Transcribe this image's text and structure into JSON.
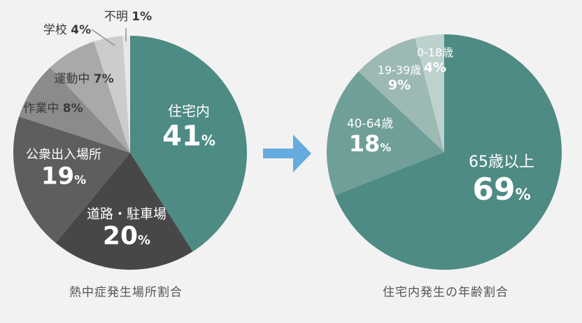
{
  "background_color": "#f2f2f2",
  "arrow": {
    "color": "#66abdd",
    "shape": "right-arrow"
  },
  "chart_data": [
    {
      "type": "pie",
      "title": "熱中症発生場所割合",
      "start_angle_deg": 0,
      "direction": "clockwise",
      "legend_position": "labels-on-slices",
      "slices": [
        {
          "label": "住宅内",
          "value": 41,
          "unit": "%",
          "color": "#4d8b84",
          "text_color": "#ffffff"
        },
        {
          "label": "道路・駐車場",
          "value": 20,
          "unit": "%",
          "color": "#474747",
          "text_color": "#ffffff"
        },
        {
          "label": "公衆出入場所",
          "value": 19,
          "unit": "%",
          "color": "#5e5e5e",
          "text_color": "#ffffff"
        },
        {
          "label": "作業中",
          "value": 8,
          "unit": "%",
          "color": "#8b8b8b",
          "text_color": "#3a3a3a"
        },
        {
          "label": "運動中",
          "value": 7,
          "unit": "%",
          "color": "#a9a9a9",
          "text_color": "#3a3a3a"
        },
        {
          "label": "学校",
          "value": 4,
          "unit": "%",
          "color": "#cccccc",
          "text_color": "#3a3a3a",
          "leader_line": true
        },
        {
          "label": "不明",
          "value": 1,
          "unit": "%",
          "color": "#e8e8e8",
          "text_color": "#3a3a3a",
          "leader_line": true
        }
      ]
    },
    {
      "type": "pie",
      "title": "住宅内発生の年齢割合",
      "start_angle_deg": 0,
      "direction": "clockwise",
      "legend_position": "labels-on-slices",
      "slices": [
        {
          "label": "65歳以上",
          "value": 69,
          "unit": "%",
          "color": "#4d8b84",
          "text_color": "#ffffff"
        },
        {
          "label": "40-64歳",
          "value": 18,
          "unit": "%",
          "color": "#6f9f98",
          "text_color": "#ffffff"
        },
        {
          "label": "19-39歳",
          "value": 9,
          "unit": "%",
          "color": "#9cb9b4",
          "text_color": "#ffffff"
        },
        {
          "label": "0-18歳",
          "value": 4,
          "unit": "%",
          "color": "#bdd2ce",
          "text_color": "#ffffff"
        }
      ]
    }
  ]
}
